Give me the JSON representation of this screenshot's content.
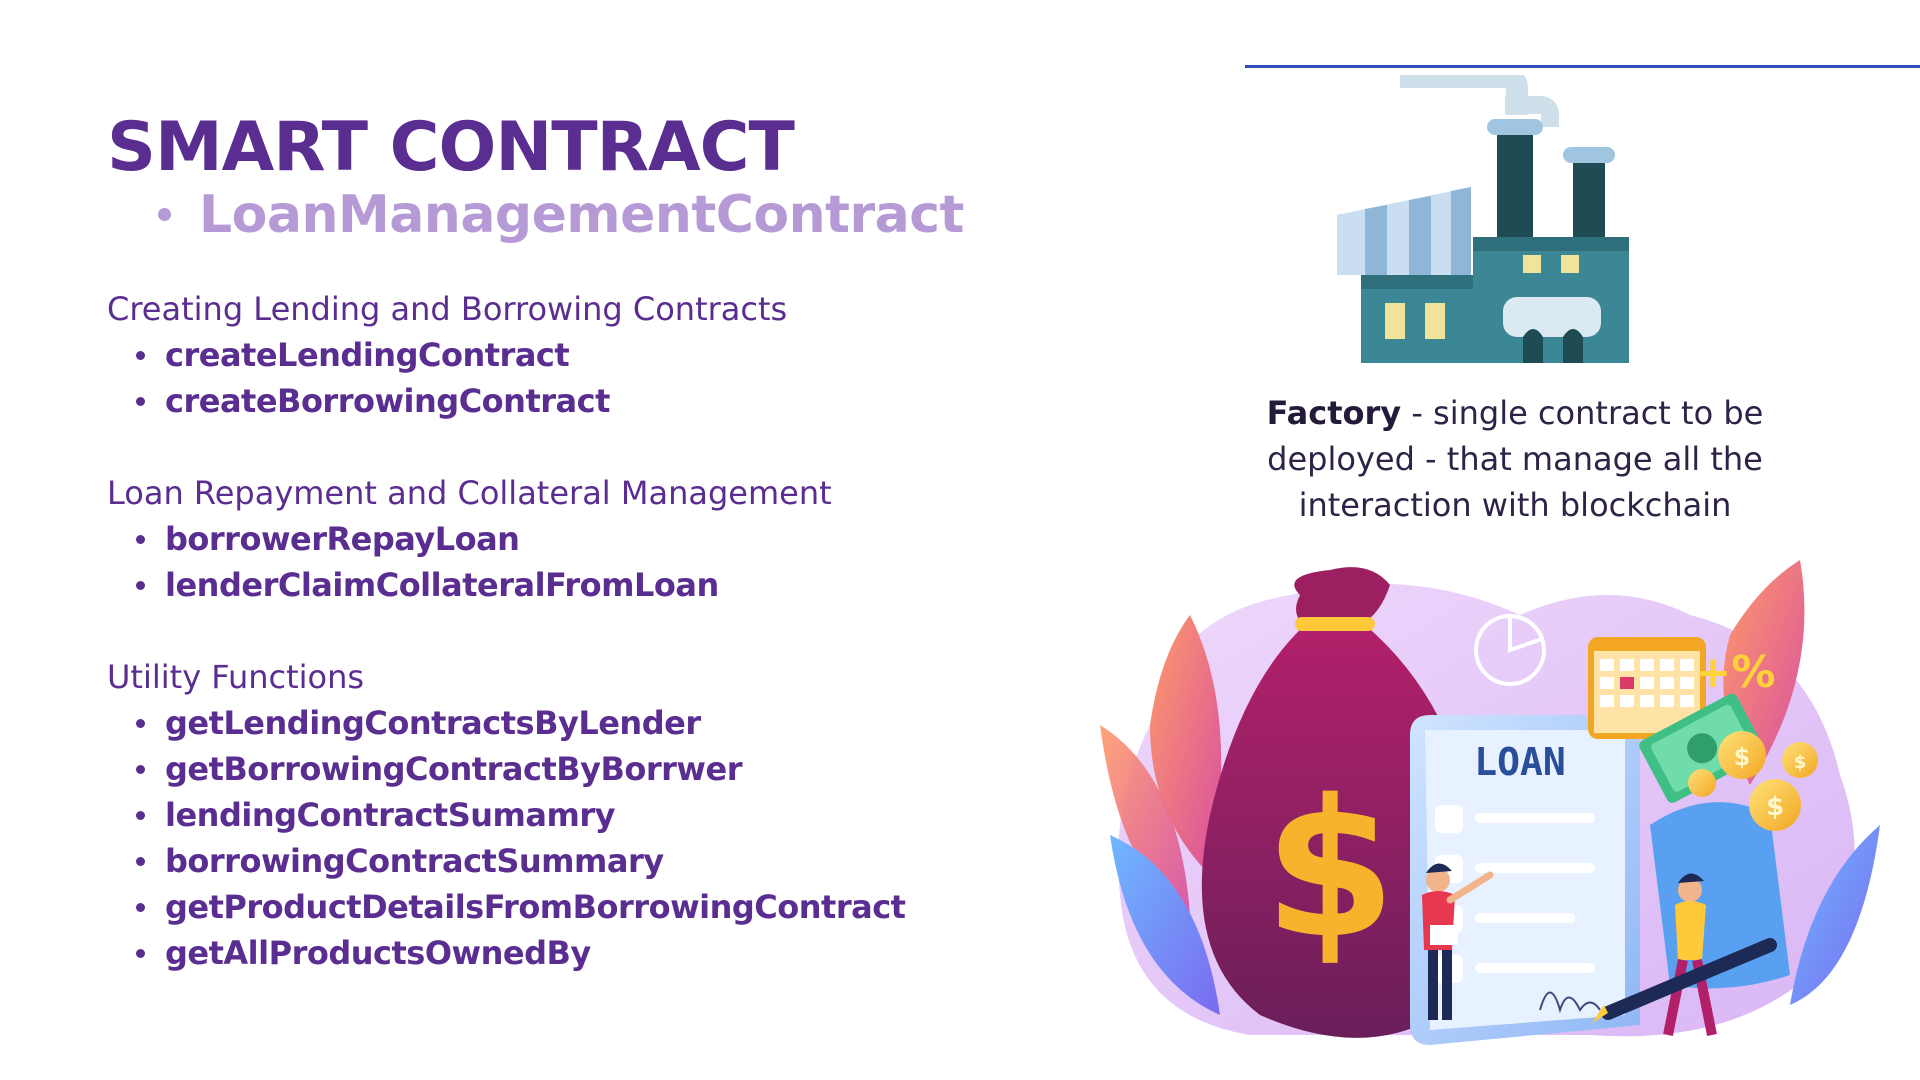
{
  "title": "SMART CONTRACT",
  "subtitle": "LoanManagementContract",
  "sections": [
    {
      "heading": "Creating Lending and Borrowing Contracts",
      "items": [
        "createLendingContract",
        "createBorrowingContract"
      ]
    },
    {
      "heading": "Loan Repayment and Collateral Management",
      "items": [
        "borrowerRepayLoan",
        "lenderClaimCollateralFromLoan"
      ]
    },
    {
      "heading": "Utility Functions",
      "items": [
        "getLendingContractsByLender",
        "getBorrowingContractByBorrwer",
        "lendingContractSumamry",
        "borrowingContractSummary",
        "getProductDetailsFromBorrowingContract",
        "getAllProductsOwnedBy"
      ]
    }
  ],
  "factory": {
    "term": "Factory",
    "description": " - single contract to be deployed - that manage all the interaction with blockchain"
  },
  "loan_illustration": {
    "document_label": "LOAN",
    "badge": "+%"
  },
  "colors": {
    "title": "#5a2d91",
    "subtitle": "#b59ad6",
    "rule": "#2f4fb8"
  },
  "icons": [
    "factory-icon",
    "money-bag-icon",
    "loan-document-icon",
    "calendar-icon",
    "coin-icon",
    "banknote-icon",
    "pen-icon"
  ]
}
